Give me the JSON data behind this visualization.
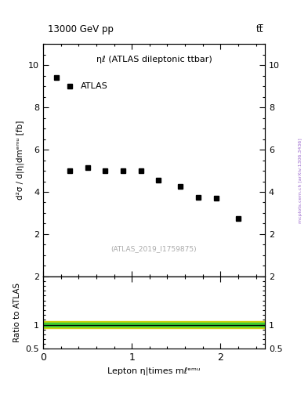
{
  "title_left": "13000 GeV pp",
  "title_right": "tt̅",
  "panel_title": "ηℓ (ATLAS dileptonic ttbar)",
  "legend_label": "ATLAS",
  "watermark": "(ATLAS_2019_I1759875)",
  "right_label": "mcplots.cern.ch [arXiv:1306.3436]",
  "xlabel": "Lepton η|times mℓᵉᵐᵘ",
  "ylabel": "d²σ / d|η|dmᵉᵐᵘ [fb]",
  "ratio_ylabel": "Ratio to ATLAS",
  "data_x": [
    0.15,
    0.3,
    0.5,
    0.7,
    0.9,
    1.1,
    1.3,
    1.55,
    1.75,
    1.95,
    2.2
  ],
  "data_y": [
    9.4,
    5.0,
    5.15,
    5.0,
    5.0,
    5.0,
    4.55,
    4.25,
    3.75,
    3.7,
    2.75
  ],
  "ylim_main": [
    0,
    11
  ],
  "xlim": [
    0,
    2.5
  ],
  "ylim_ratio": [
    0.5,
    2.0
  ],
  "yticks_main": [
    2,
    4,
    6,
    8,
    10
  ],
  "xticks": [
    0,
    1,
    2
  ],
  "xtick_labels": [
    "0",
    "1",
    "2"
  ],
  "yticks_ratio": [
    0.5,
    1.0,
    2.0
  ],
  "ytick_ratio_labels": [
    "0.5",
    "1",
    "2"
  ],
  "green_band": [
    0.96,
    1.04
  ],
  "yellow_band": [
    0.93,
    1.07
  ],
  "ratio_line": 1.0,
  "bg_color": "#ffffff",
  "marker_color": "#000000",
  "green_color": "#33cc33",
  "yellow_color": "#cccc00",
  "title_color": "#000000",
  "watermark_color": "#aaaaaa",
  "right_label_color": "#9966cc"
}
